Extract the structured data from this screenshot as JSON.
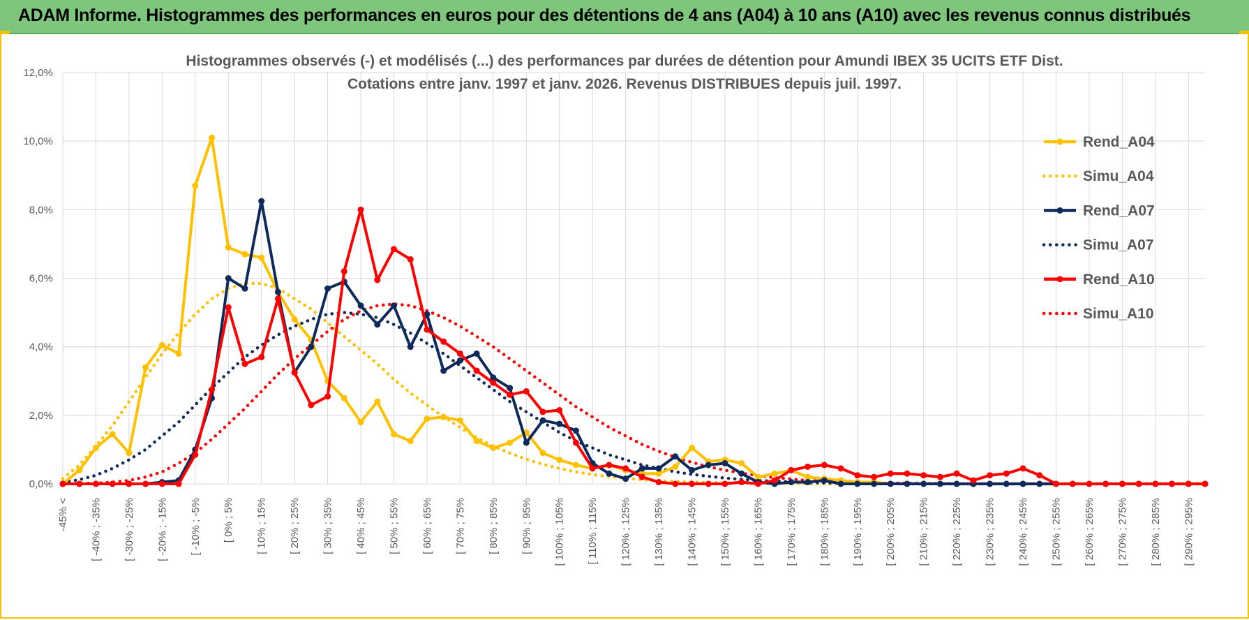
{
  "header": {
    "title": "ADAM Informe. Histogrammes des performances en euros pour des détentions de 4 ans (A04) à 10 ans (A10) avec les revenus connus distribués"
  },
  "chart_data": {
    "type": "line",
    "title_line1": "Histogrammes observés (-) et modélisés (...) des performances par durées de détention pour Amundi IBEX 35 UCITS ETF Dist.",
    "title_line2": "Cotations entre janv. 1997 et janv. 2026. Revenus DISTRIBUES depuis juil. 1997.",
    "ylim": [
      0,
      12
    ],
    "yticks": [
      "0,0%",
      "2,0%",
      "4,0%",
      "6,0%",
      "8,0%",
      "10,0%",
      "12,0%"
    ],
    "grid": true,
    "legend_position": "right",
    "categories": [
      "-45% <",
      "[ -45% ; -40%",
      "[ -40% ; -35%",
      "[ -35% ; -30%",
      "[ -30% ; -25%",
      "[ -25% ; -20%",
      "[ -20% ; -15%",
      "[ -15% ; -10%",
      "[ -10% ; -5%",
      "[ -5% ; 0%",
      "[ 0% ; 5%",
      "[ 5% ; 10%",
      "[ 10% ; 15%",
      "[ 15% ; 20%",
      "[ 20% ; 25%",
      "[ 25% ; 30%",
      "[ 30% ; 35%",
      "[ 35% ; 40%",
      "[ 40% ; 45%",
      "[ 45% ; 50%",
      "[ 50% ; 55%",
      "[ 55% ; 60%",
      "[ 60% ; 65%",
      "[ 65% ; 70%",
      "[ 70% ; 75%",
      "[ 75% ; 80%",
      "[ 80% ; 85%",
      "[ 85% ; 90%",
      "[ 90% ; 95%",
      "[ 95% ; 100%",
      "[ 100% ; 105%",
      "[ 105% ; 110%",
      "[ 110% ; 115%",
      "[ 115% ; 120%",
      "[ 120% ; 125%",
      "[ 125% ; 130%",
      "[ 130% ; 135%",
      "[ 135% ; 140%",
      "[ 140% ; 145%",
      "[ 145% ; 150%",
      "[ 150% ; 155%",
      "[ 155% ; 160%",
      "[ 160% ; 165%",
      "[ 165% ; 170%",
      "[ 170% ; 175%",
      "[ 175% ; 180%",
      "[ 180% ; 185%",
      "[ 185% ; 190%",
      "[ 190% ; 195%",
      "[ 195% ; 200%",
      "[ 200% ; 205%",
      "[ 205% ; 210%",
      "[ 210% ; 215%",
      "[ 215% ; 220%",
      "[ 220% ; 225%",
      "[ 225% ; 230%",
      "[ 230% ; 235%",
      "[ 235% ; 240%",
      "[ 240% ; 245%",
      "[ 245% ; 250%",
      "[ 250% ; 255%",
      "[ 255% ; 260%",
      "[ 260% ; 265%",
      "[ 265% ; 270%",
      "[ 270% ; 275%",
      "[ 275% ; 280%",
      "[ 280% ; 285%",
      "[ 285% ; 290%",
      "[ 290% ; 295%",
      "[ 295% ; 300%"
    ],
    "x_labels": [
      "-45% <",
      "[ -40% ; -35%",
      "[ -30% ; -25%",
      "[ -20% ; -15%",
      "[ -10% ; -5%",
      "[ 0% ; 5%",
      "[ 10% ; 15%",
      "[ 20% ; 25%",
      "[ 30% ; 35%",
      "[ 40% ; 45%",
      "[ 50% ; 55%",
      "[ 60% ; 65%",
      "[ 70% ; 75%",
      "[ 80% ; 85%",
      "[ 90% ; 95%",
      "[ 100% ; 105%",
      "[ 110% ; 115%",
      "[ 120% ; 125%",
      "[ 130% ; 135%",
      "[ 140% ; 145%",
      "[ 150% ; 155%",
      "[ 160% ; 165%",
      "[ 170% ; 175%",
      "[ 180% ; 185%",
      "[ 190% ; 195%",
      "[ 200% ; 205%",
      "[ 210% ; 215%",
      "[ 220% ; 225%",
      "[ 230% ; 235%",
      "[ 240% ; 245%",
      "[ 250% ; 255%",
      "[ 260% ; 265%",
      "[ 270% ; 275%",
      "[ 280% ; 285%",
      "[ 290% ; 295%"
    ],
    "series": [
      {
        "name": "Rend_A04",
        "color": "#ffc000",
        "style": "solid",
        "markers": true,
        "values": [
          0.0,
          0.4,
          1.05,
          1.45,
          0.9,
          3.4,
          4.05,
          3.8,
          8.7,
          10.1,
          6.9,
          6.7,
          6.6,
          5.6,
          4.8,
          4.2,
          3.0,
          2.5,
          1.8,
          2.4,
          1.45,
          1.25,
          1.9,
          1.95,
          1.85,
          1.25,
          1.05,
          1.2,
          1.5,
          0.9,
          0.7,
          0.55,
          0.45,
          0.55,
          0.4,
          0.3,
          0.3,
          0.5,
          1.05,
          0.65,
          0.7,
          0.6,
          0.2,
          0.3,
          0.4,
          0.2,
          0.15,
          0.1,
          0.05,
          0.05,
          0.0,
          0.0,
          0.0,
          0.0,
          0.0,
          0.0,
          0.0,
          0.0,
          0.0,
          0.0,
          0.0,
          0.0,
          0.0,
          0.0,
          0.0,
          0.0,
          0.0,
          0.0,
          0.0,
          0.0
        ]
      },
      {
        "name": "Simu_A04",
        "color": "#ffc000",
        "style": "dotted",
        "markers": false,
        "values": [
          0.15,
          0.55,
          1.1,
          1.7,
          2.4,
          3.1,
          3.8,
          4.4,
          4.95,
          5.4,
          5.7,
          5.85,
          5.85,
          5.7,
          5.4,
          5.1,
          4.7,
          4.3,
          3.9,
          3.5,
          3.05,
          2.65,
          2.3,
          1.95,
          1.65,
          1.35,
          1.1,
          0.9,
          0.72,
          0.57,
          0.45,
          0.35,
          0.27,
          0.21,
          0.16,
          0.12,
          0.09,
          0.07,
          0.05,
          0.04,
          0.03,
          0.02,
          0.015,
          0.01,
          0.01,
          0.0,
          0.0,
          0.0,
          0.0,
          0.0,
          0.0,
          0.0,
          0.0,
          0.0,
          0.0,
          0.0,
          0.0,
          0.0,
          0.0,
          0.0,
          0.0,
          0.0,
          0.0,
          0.0,
          0.0,
          0.0,
          0.0,
          0.0,
          0.0,
          0.0
        ]
      },
      {
        "name": "Rend_A07",
        "color": "#0e2a5a",
        "style": "solid",
        "markers": true,
        "values": [
          0.0,
          0.0,
          0.0,
          0.0,
          0.0,
          0.0,
          0.05,
          0.1,
          1.0,
          2.5,
          6.0,
          5.7,
          8.25,
          5.6,
          3.25,
          4.0,
          5.7,
          5.9,
          5.2,
          4.65,
          5.2,
          4.0,
          4.95,
          3.3,
          3.6,
          3.8,
          3.1,
          2.8,
          1.2,
          1.85,
          1.75,
          1.55,
          0.6,
          0.3,
          0.15,
          0.45,
          0.45,
          0.8,
          0.4,
          0.55,
          0.6,
          0.3,
          0.05,
          0.0,
          0.05,
          0.05,
          0.1,
          0.0,
          0.0,
          0.0,
          0.0,
          0.0,
          0.0,
          0.0,
          0.0,
          0.0,
          0.0,
          0.0,
          0.0,
          0.0,
          0.0,
          0.0,
          0.0,
          0.0,
          0.0,
          0.0,
          0.0,
          0.0,
          0.0,
          0.0
        ]
      },
      {
        "name": "Simu_A07",
        "color": "#0e2a5a",
        "style": "dotted",
        "markers": false,
        "values": [
          0.05,
          0.12,
          0.25,
          0.45,
          0.7,
          1.0,
          1.4,
          1.8,
          2.3,
          2.8,
          3.25,
          3.7,
          4.05,
          4.35,
          4.6,
          4.8,
          4.95,
          5.0,
          4.95,
          4.85,
          4.65,
          4.4,
          4.1,
          3.8,
          3.45,
          3.1,
          2.75,
          2.4,
          2.1,
          1.8,
          1.5,
          1.25,
          1.05,
          0.85,
          0.7,
          0.55,
          0.45,
          0.35,
          0.28,
          0.22,
          0.17,
          0.13,
          0.1,
          0.08,
          0.06,
          0.04,
          0.03,
          0.02,
          0.02,
          0.01,
          0.01,
          0.0,
          0.0,
          0.0,
          0.0,
          0.0,
          0.0,
          0.0,
          0.0,
          0.0,
          0.0,
          0.0,
          0.0,
          0.0,
          0.0,
          0.0,
          0.0,
          0.0,
          0.0,
          0.0
        ]
      },
      {
        "name": "Rend_A10",
        "color": "#ff0000",
        "style": "solid",
        "markers": true,
        "values": [
          0.0,
          0.0,
          0.0,
          0.0,
          0.0,
          0.0,
          0.0,
          0.0,
          0.85,
          2.75,
          5.15,
          3.5,
          3.7,
          5.4,
          3.25,
          2.3,
          2.55,
          6.2,
          8.0,
          5.95,
          6.85,
          6.55,
          4.5,
          4.15,
          3.8,
          3.3,
          2.95,
          2.6,
          2.7,
          2.1,
          2.15,
          1.2,
          0.45,
          0.55,
          0.45,
          0.2,
          0.05,
          0.0,
          0.0,
          0.0,
          0.0,
          0.05,
          0.0,
          0.1,
          0.4,
          0.5,
          0.55,
          0.45,
          0.25,
          0.2,
          0.3,
          0.3,
          0.25,
          0.2,
          0.3,
          0.1,
          0.25,
          0.3,
          0.45,
          0.25,
          0.0,
          0.0,
          0.0,
          0.0,
          0.0,
          0.0,
          0.0,
          0.0,
          0.0,
          0.0
        ]
      },
      {
        "name": "Simu_A10",
        "color": "#ff0000",
        "style": "dotted",
        "markers": false,
        "values": [
          0.0,
          0.01,
          0.02,
          0.05,
          0.1,
          0.2,
          0.35,
          0.6,
          0.9,
          1.3,
          1.75,
          2.2,
          2.7,
          3.2,
          3.65,
          4.05,
          4.45,
          4.8,
          5.05,
          5.2,
          5.25,
          5.2,
          5.05,
          4.85,
          4.6,
          4.3,
          4.0,
          3.65,
          3.3,
          2.95,
          2.6,
          2.25,
          1.95,
          1.65,
          1.4,
          1.15,
          0.95,
          0.78,
          0.63,
          0.5,
          0.4,
          0.31,
          0.24,
          0.18,
          0.14,
          0.1,
          0.08,
          0.06,
          0.04,
          0.03,
          0.02,
          0.02,
          0.01,
          0.01,
          0.0,
          0.0,
          0.0,
          0.0,
          0.0,
          0.0,
          0.0,
          0.0,
          0.0,
          0.0,
          0.0,
          0.0,
          0.0,
          0.0,
          0.0,
          0.0
        ]
      }
    ]
  }
}
